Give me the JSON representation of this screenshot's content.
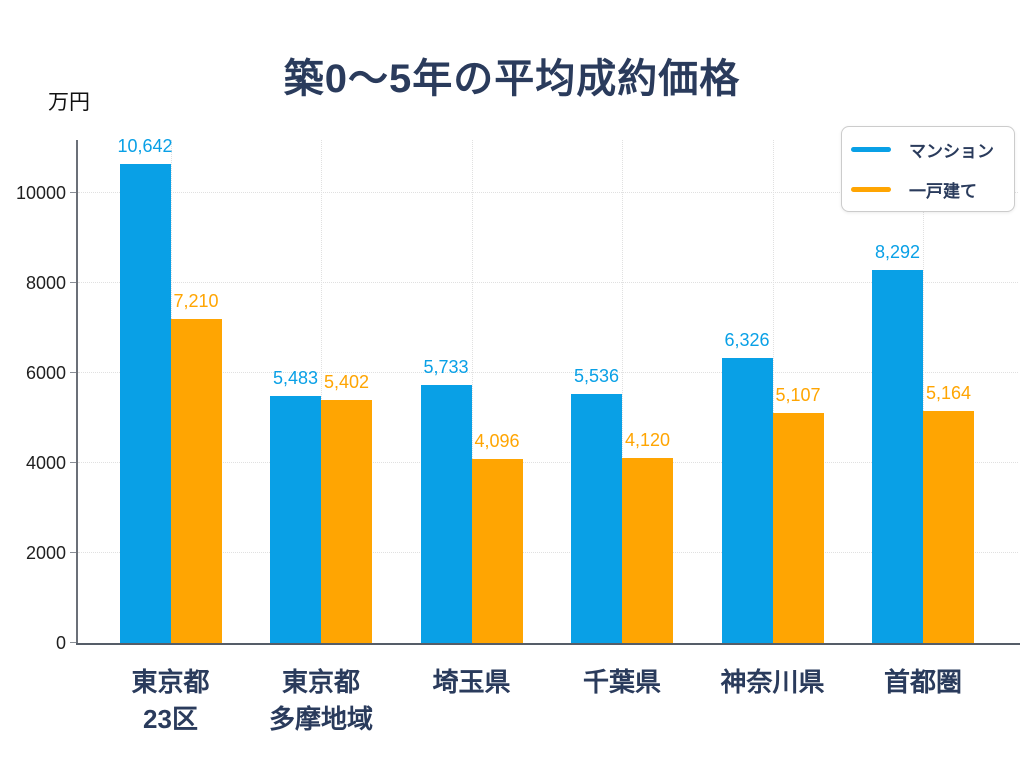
{
  "title": "築0〜5年の平均成約価格",
  "axis_unit_label": "万円",
  "legend": {
    "position": "top-right",
    "items": [
      {
        "label": "マンション",
        "color": "#09a0e6"
      },
      {
        "label": "一戸建て",
        "color": "#ffa502"
      }
    ]
  },
  "chart_data": {
    "type": "bar",
    "title": "築0〜5年の平均成約価格",
    "ylabel": "万円",
    "categories": [
      "東京都\n23区",
      "東京都\n多摩地域",
      "埼玉県",
      "千葉県",
      "神奈川県",
      "首都圏"
    ],
    "series": [
      {
        "name": "マンション",
        "color": "#09a0e6",
        "values": [
          10642,
          5483,
          5733,
          5536,
          6326,
          8292
        ]
      },
      {
        "name": "一戸建て",
        "color": "#ffa502",
        "values": [
          7210,
          5402,
          4096,
          4120,
          5107,
          5164
        ]
      }
    ],
    "yticks": [
      0,
      2000,
      4000,
      6000,
      8000,
      10000
    ],
    "ylim": [
      0,
      11178
    ],
    "grid": true,
    "legend_position": "top-right",
    "value_labels": true,
    "value_label_format": "thousands-comma"
  },
  "colors": {
    "background": "#ffffff",
    "title_text": "#2a3b5c",
    "category_text": "#2a3b5c",
    "tick_text": "#1f1f1f",
    "grid": "#e0e0e0",
    "spine": "#6b7078",
    "legend_border": "#cccccc",
    "series_mansion": "#09a0e6",
    "series_house": "#ffa502"
  }
}
